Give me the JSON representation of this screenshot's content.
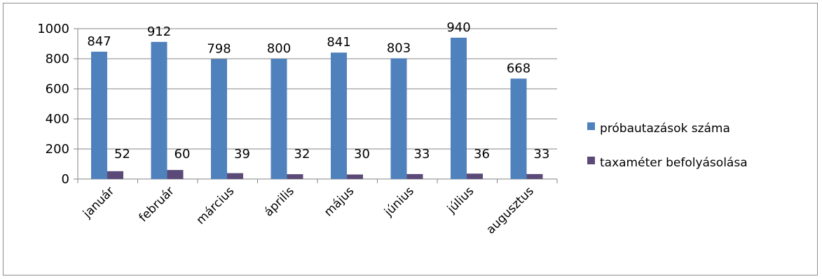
{
  "chart_data": {
    "type": "bar",
    "title": "",
    "xlabel": "",
    "ylabel": "",
    "categories": [
      "január",
      "február",
      "március",
      "április",
      "május",
      "június",
      "július",
      "augusztus"
    ],
    "series": [
      {
        "name": "próbautazások száma",
        "color": "#4f81bd",
        "values": [
          847,
          912,
          798,
          800,
          841,
          803,
          940,
          668
        ]
      },
      {
        "name": "taxaméter befolyásolása",
        "color": "#5b4a78",
        "values": [
          52,
          60,
          39,
          32,
          30,
          33,
          36,
          33
        ]
      }
    ],
    "ylim": [
      0,
      1000
    ],
    "yticks": [
      "0",
      "200",
      "400",
      "600",
      "800",
      "1000"
    ],
    "grid": true,
    "legend_position": "right"
  }
}
